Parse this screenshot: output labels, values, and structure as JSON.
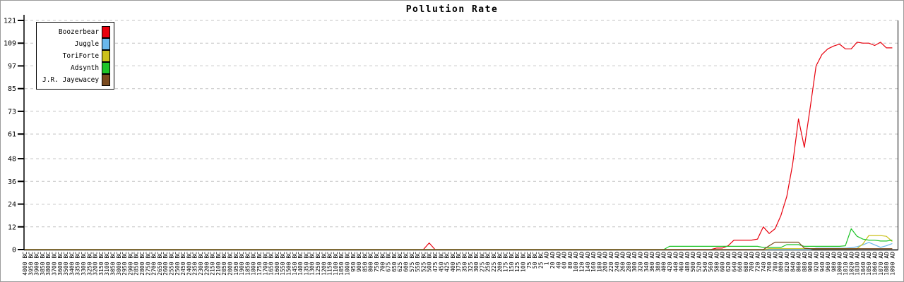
{
  "chart_data": {
    "type": "line",
    "title": "Pollution Rate",
    "xlabel": "",
    "ylabel": "",
    "ylim": [
      0,
      121
    ],
    "yticks": [
      0,
      12,
      24,
      36,
      48,
      61,
      73,
      85,
      97,
      109,
      121
    ],
    "grid": "horizontal-dashed",
    "grid_color": "#c3c3c3",
    "axis_color": "#000000",
    "legend_position": "top-left",
    "x_label_rotation": -90,
    "categories": [
      "4000 BC",
      "3950 BC",
      "3900 BC",
      "3850 BC",
      "3800 BC",
      "3700 BC",
      "3600 BC",
      "3500 BC",
      "3400 BC",
      "3350 BC",
      "3300 BC",
      "3250 BC",
      "3200 BC",
      "3150 BC",
      "3100 BC",
      "3050 BC",
      "3000 BC",
      "2950 BC",
      "2900 BC",
      "2850 BC",
      "2800 BC",
      "2750 BC",
      "2700 BC",
      "2650 BC",
      "2600 BC",
      "2550 BC",
      "2500 BC",
      "2450 BC",
      "2400 BC",
      "2350 BC",
      "2300 BC",
      "2200 BC",
      "2150 BC",
      "2100 BC",
      "2050 BC",
      "2000 BC",
      "1950 BC",
      "1900 BC",
      "1850 BC",
      "1800 BC",
      "1750 BC",
      "1700 BC",
      "1650 BC",
      "1600 BC",
      "1550 BC",
      "1500 BC",
      "1450 BC",
      "1400 BC",
      "1350 BC",
      "1300 BC",
      "1250 BC",
      "1200 BC",
      "1150 BC",
      "1100 BC",
      "1050 BC",
      "1000 BC",
      "950 BC",
      "900 BC",
      "850 BC",
      "800 BC",
      "750 BC",
      "700 BC",
      "675 BC",
      "650 BC",
      "625 BC",
      "600 BC",
      "575 BC",
      "550 BC",
      "525 BC",
      "500 BC",
      "475 BC",
      "450 BC",
      "425 BC",
      "400 BC",
      "375 BC",
      "350 BC",
      "325 BC",
      "300 BC",
      "275 BC",
      "250 BC",
      "225 BC",
      "200 BC",
      "175 BC",
      "150 BC",
      "125 BC",
      "100 BC",
      "75 BC",
      "50 BC",
      "25 BC",
      "1 AD",
      "20 AD",
      "40 AD",
      "60 AD",
      "80 AD",
      "100 AD",
      "120 AD",
      "140 AD",
      "160 AD",
      "180 AD",
      "200 AD",
      "220 AD",
      "240 AD",
      "260 AD",
      "280 AD",
      "300 AD",
      "320 AD",
      "340 AD",
      "360 AD",
      "380 AD",
      "400 AD",
      "420 AD",
      "440 AD",
      "460 AD",
      "480 AD",
      "500 AD",
      "520 AD",
      "540 AD",
      "560 AD",
      "580 AD",
      "600 AD",
      "620 AD",
      "640 AD",
      "660 AD",
      "680 AD",
      "700 AD",
      "720 AD",
      "740 AD",
      "760 AD",
      "780 AD",
      "800 AD",
      "820 AD",
      "840 AD",
      "860 AD",
      "880 AD",
      "900 AD",
      "920 AD",
      "940 AD",
      "960 AD",
      "980 AD",
      "1000 AD",
      "1010 AD",
      "1020 AD",
      "1030 AD",
      "1040 AD",
      "1050 AD",
      "1060 AD",
      "1070 AD",
      "1080 AD",
      "1090 AD"
    ],
    "series": [
      {
        "name": "Boozerbear",
        "color": "#e8000d",
        "default": 0,
        "runs": [
          [
            69,
            69,
            3.5
          ],
          [
            118,
            119,
            0.8
          ],
          [
            120,
            120,
            2
          ],
          [
            121,
            124,
            5
          ],
          [
            125,
            125,
            5.5
          ],
          [
            126,
            126,
            12
          ],
          [
            127,
            127,
            8.5
          ],
          [
            128,
            128,
            11
          ],
          [
            129,
            129,
            18
          ],
          [
            130,
            130,
            28
          ],
          [
            131,
            131,
            45
          ],
          [
            132,
            132,
            69
          ],
          [
            133,
            133,
            54
          ],
          [
            134,
            134,
            75
          ],
          [
            135,
            135,
            97
          ],
          [
            136,
            136,
            103
          ],
          [
            137,
            137,
            106
          ],
          [
            138,
            138,
            107.5
          ],
          [
            139,
            139,
            108.5
          ],
          [
            140,
            141,
            106
          ],
          [
            142,
            142,
            109.5
          ],
          [
            143,
            144,
            109
          ],
          [
            145,
            145,
            107.8
          ],
          [
            146,
            146,
            109.5
          ],
          [
            147,
            148,
            106.5
          ]
        ]
      },
      {
        "name": "Juggle",
        "color": "#6ab8ec",
        "default": 0,
        "runs": [
          [
            135,
            140,
            0.7
          ],
          [
            141,
            141,
            1
          ],
          [
            142,
            142,
            1.5
          ],
          [
            143,
            143,
            2.5
          ],
          [
            144,
            144,
            3.8
          ],
          [
            145,
            145,
            2.5
          ],
          [
            146,
            146,
            1.2
          ],
          [
            147,
            147,
            2
          ],
          [
            148,
            148,
            3.2
          ]
        ]
      },
      {
        "name": "ToriForte",
        "color": "#cbc11b",
        "default": 0,
        "runs": [
          [
            127,
            142,
            0.5
          ],
          [
            143,
            143,
            3
          ],
          [
            144,
            146,
            7.4
          ],
          [
            147,
            147,
            7
          ],
          [
            148,
            148,
            4.3
          ]
        ]
      },
      {
        "name": "Adsynth",
        "color": "#1ec428",
        "default": 0,
        "runs": [
          [
            110,
            125,
            1.7
          ],
          [
            126,
            129,
            1.1
          ],
          [
            130,
            132,
            2.6
          ],
          [
            133,
            139,
            1.7
          ],
          [
            140,
            140,
            2
          ],
          [
            141,
            141,
            11
          ],
          [
            142,
            142,
            7
          ],
          [
            143,
            143,
            5.5
          ],
          [
            144,
            145,
            5
          ],
          [
            146,
            147,
            4.5
          ],
          [
            148,
            148,
            5
          ]
        ]
      },
      {
        "name": "J.R. Jayewacey",
        "color": "#7a4a1e",
        "default": 0,
        "runs": [
          [
            127,
            127,
            2
          ],
          [
            128,
            132,
            3.9
          ],
          [
            133,
            133,
            0.7
          ],
          [
            134,
            148,
            0.5
          ]
        ]
      }
    ]
  }
}
